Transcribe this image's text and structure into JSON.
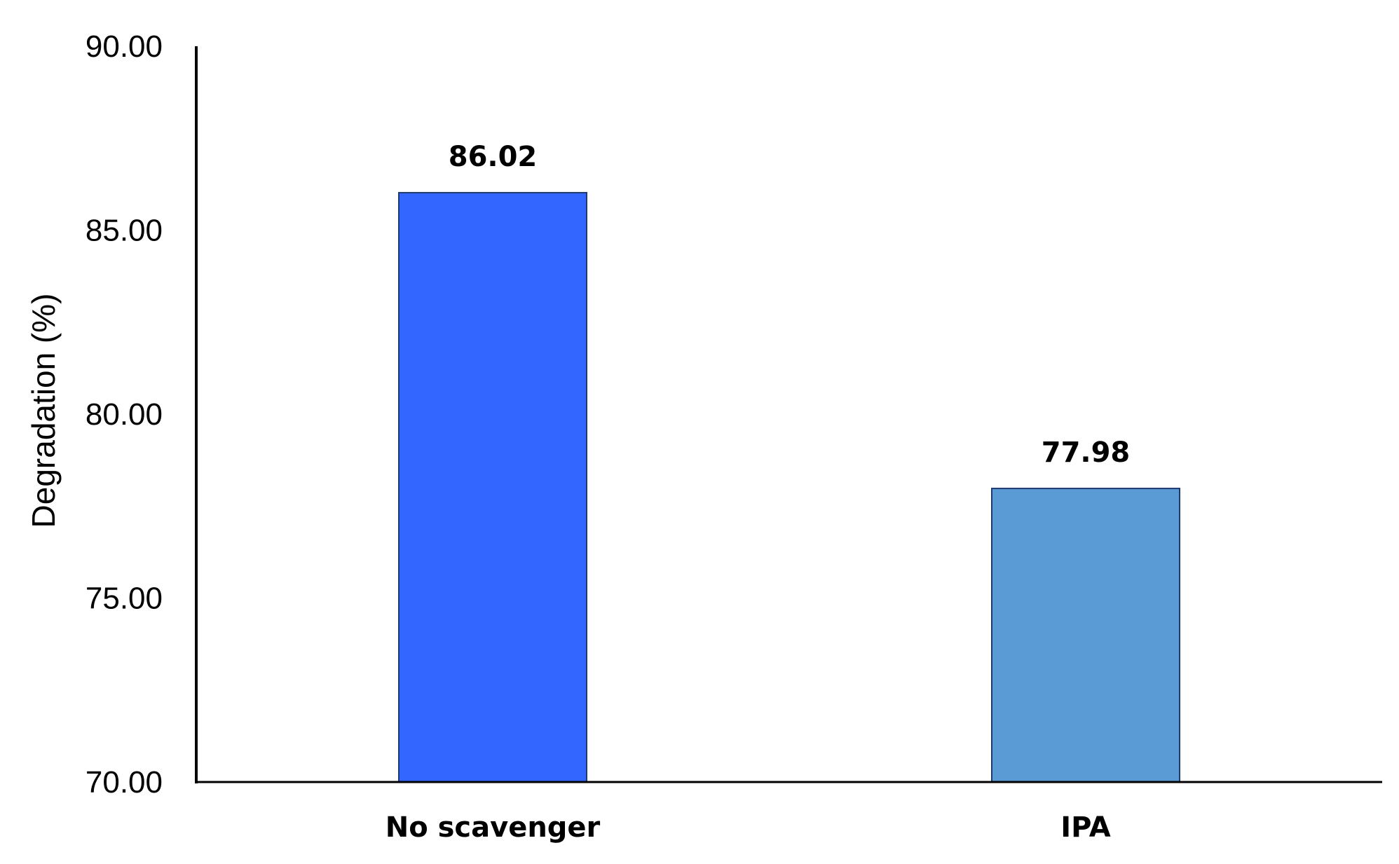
{
  "chart_data": {
    "type": "bar",
    "title": "",
    "xlabel": "",
    "ylabel": "Degradation (%)",
    "ylim": [
      70,
      90
    ],
    "yticks": [
      70,
      75,
      80,
      85,
      90
    ],
    "ytick_labels": [
      "70.00",
      "75.00",
      "80.00",
      "85.00",
      "90.00"
    ],
    "grid": false,
    "legend": "none",
    "categories": [
      "No scavenger",
      "IPA"
    ],
    "values": [
      86.02,
      77.98
    ],
    "data_labels": [
      "86.02",
      "77.98"
    ],
    "bar_colors": [
      "#3366FF",
      "#5B9BD5"
    ],
    "bar_edge_color": "#1F3A6E"
  }
}
